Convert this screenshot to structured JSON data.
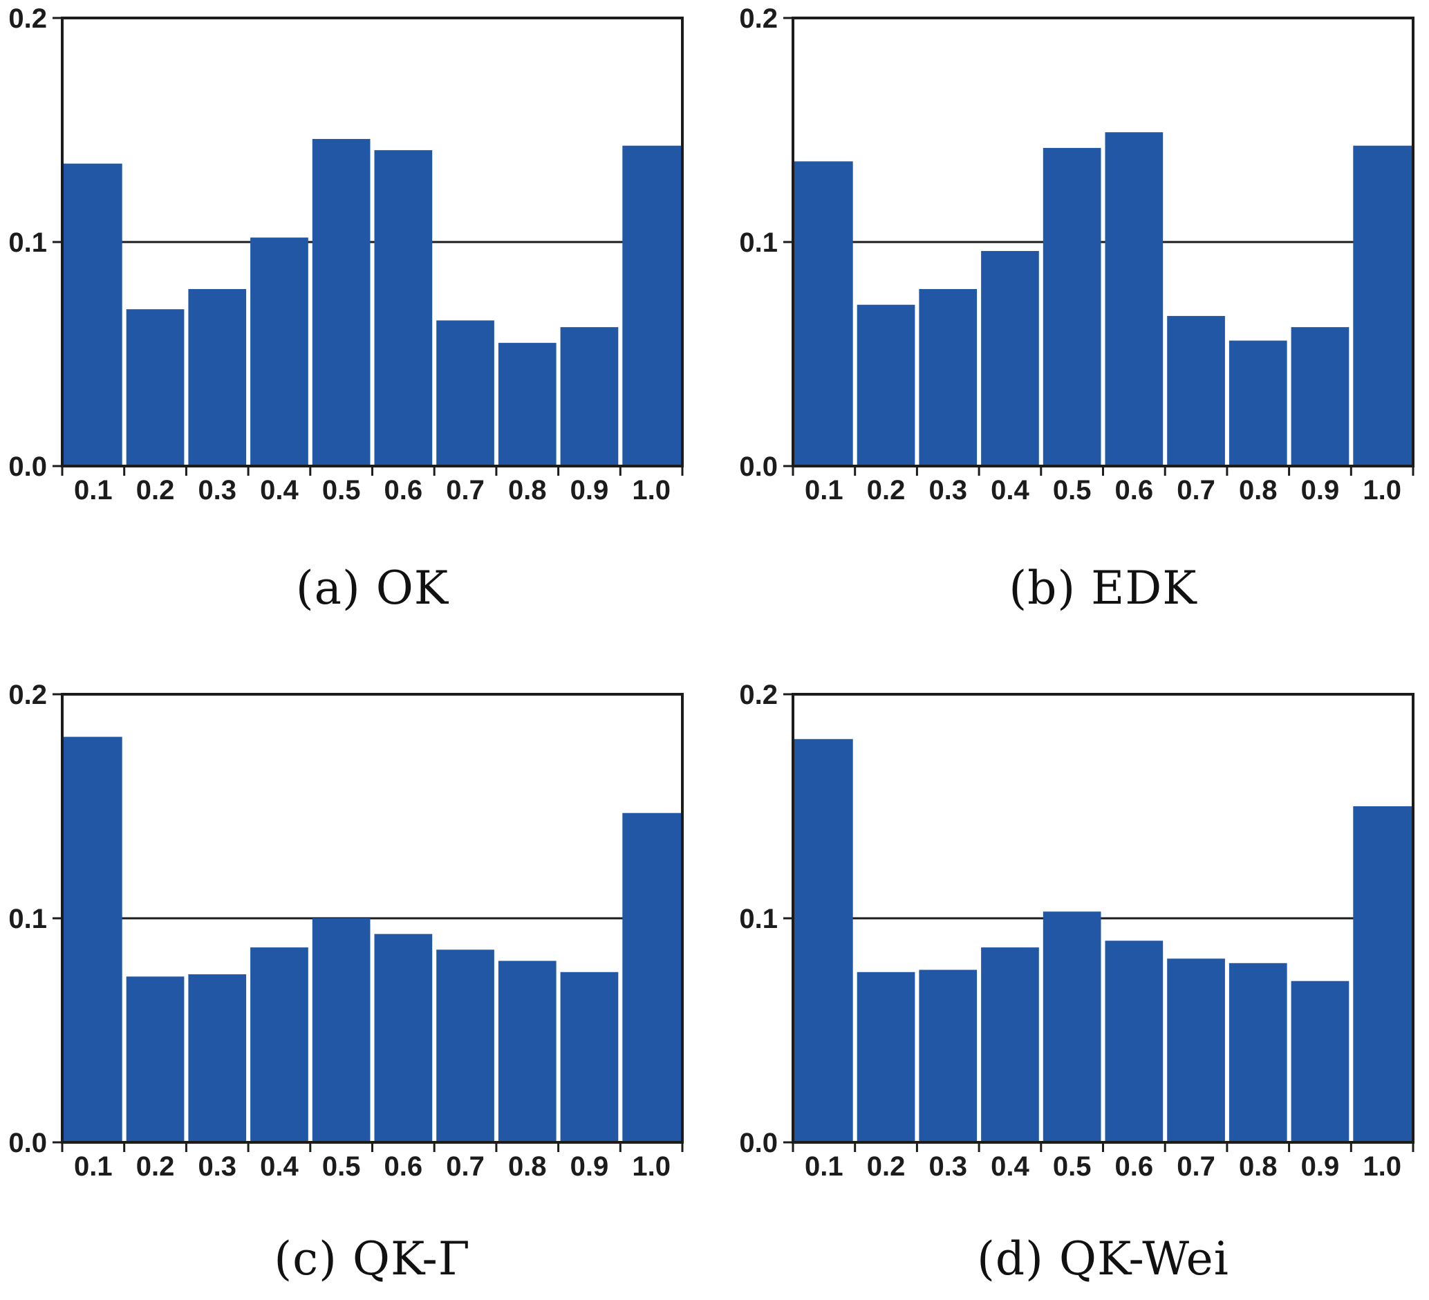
{
  "figure": {
    "background": "#ffffff",
    "bar_color": "#2257A5",
    "bar_gap_color": "#ffffff",
    "axis_color": "#1c1c1c",
    "reference_line_value": 0.1,
    "y_axis": {
      "min": 0.0,
      "max": 0.2,
      "tick_labels": [
        "0.0",
        "0.1",
        "0.2"
      ]
    },
    "x_tick_labels": [
      "0.1",
      "0.2",
      "0.3",
      "0.4",
      "0.5",
      "0.6",
      "0.7",
      "0.8",
      "0.9",
      "1.0"
    ]
  },
  "chart_data": [
    {
      "id": "a",
      "type": "bar",
      "title": "(a) OK",
      "categories": [
        "0.1",
        "0.2",
        "0.3",
        "0.4",
        "0.5",
        "0.6",
        "0.7",
        "0.8",
        "0.9",
        "1.0"
      ],
      "values": [
        0.135,
        0.07,
        0.079,
        0.102,
        0.146,
        0.141,
        0.065,
        0.055,
        0.062,
        0.143
      ],
      "ylim": [
        0.0,
        0.2
      ],
      "ref_line": 0.1,
      "grid": false,
      "legend": null,
      "xlabel": "",
      "ylabel": ""
    },
    {
      "id": "b",
      "type": "bar",
      "title": "(b) EDK",
      "categories": [
        "0.1",
        "0.2",
        "0.3",
        "0.4",
        "0.5",
        "0.6",
        "0.7",
        "0.8",
        "0.9",
        "1.0"
      ],
      "values": [
        0.136,
        0.072,
        0.079,
        0.096,
        0.142,
        0.149,
        0.067,
        0.056,
        0.062,
        0.143
      ],
      "ylim": [
        0.0,
        0.2
      ],
      "ref_line": 0.1,
      "grid": false,
      "legend": null,
      "xlabel": "",
      "ylabel": ""
    },
    {
      "id": "c",
      "type": "bar",
      "title": "(c) QK-Γ",
      "categories": [
        "0.1",
        "0.2",
        "0.3",
        "0.4",
        "0.5",
        "0.6",
        "0.7",
        "0.8",
        "0.9",
        "1.0"
      ],
      "values": [
        0.181,
        0.074,
        0.075,
        0.087,
        0.1,
        0.093,
        0.086,
        0.081,
        0.076,
        0.147
      ],
      "ylim": [
        0.0,
        0.2
      ],
      "ref_line": 0.1,
      "grid": false,
      "legend": null,
      "xlabel": "",
      "ylabel": ""
    },
    {
      "id": "d",
      "type": "bar",
      "title": "(d) QK-Wei",
      "categories": [
        "0.1",
        "0.2",
        "0.3",
        "0.4",
        "0.5",
        "0.6",
        "0.7",
        "0.8",
        "0.9",
        "1.0"
      ],
      "values": [
        0.18,
        0.076,
        0.077,
        0.087,
        0.103,
        0.09,
        0.082,
        0.08,
        0.072,
        0.15
      ],
      "ylim": [
        0.0,
        0.2
      ],
      "ref_line": 0.1,
      "grid": false,
      "legend": null,
      "xlabel": "",
      "ylabel": ""
    }
  ]
}
